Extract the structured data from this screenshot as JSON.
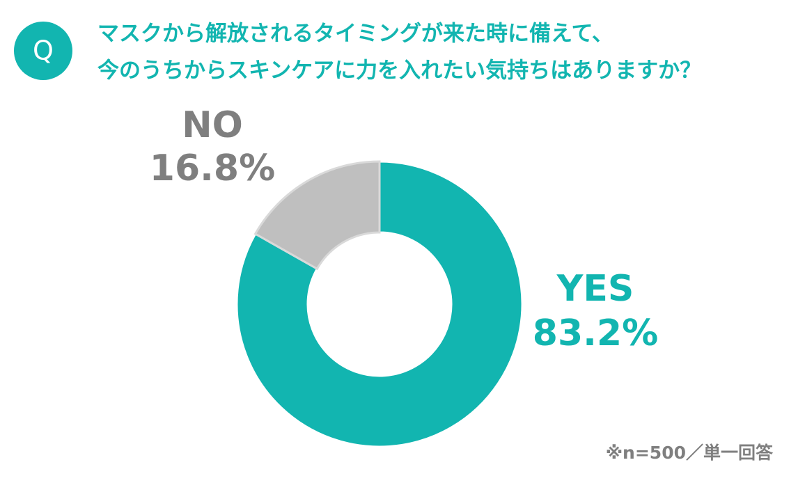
{
  "chart_data": {
    "type": "pie",
    "donut": true,
    "badge": "Q",
    "title": [
      "マスクから解放されるタイミングが来た時に備えて、",
      "今のうちからスキンケアに力を入れたい気持ちはありますか？"
    ],
    "categories": [
      "YES",
      "NO"
    ],
    "values": [
      83.2,
      16.8
    ],
    "value_labels": [
      "83.2%",
      "16.8%"
    ],
    "colors": [
      "#12b5b0",
      "#bfbfbf"
    ],
    "note": "※n=500／単一回答"
  }
}
